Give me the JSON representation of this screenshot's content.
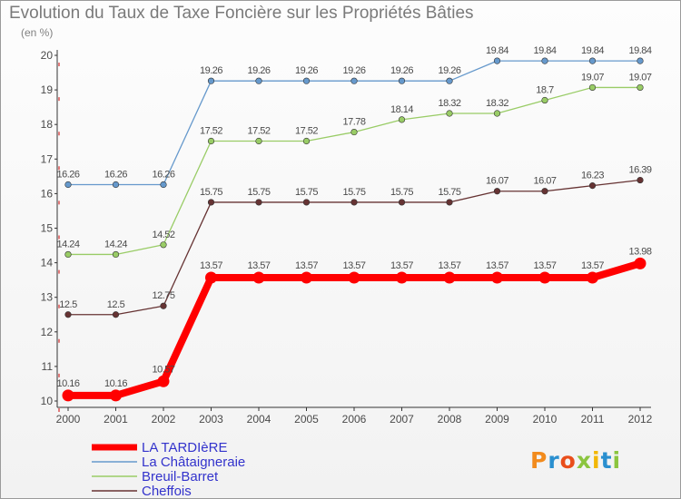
{
  "chart_data": {
    "type": "line",
    "title": "Evolution du Taux de Taxe Foncière sur les Propriétés Bâties",
    "ylabel": "(en %)",
    "ylim": [
      10,
      20
    ],
    "yticks": [
      10,
      11,
      12,
      13,
      14,
      15,
      16,
      17,
      18,
      19,
      20
    ],
    "x": [
      "2000",
      "2001",
      "2002",
      "2003",
      "2004",
      "2005",
      "2006",
      "2007",
      "2008",
      "2009",
      "2010",
      "2011",
      "2012"
    ],
    "grid": false,
    "legend_position": "bottom-left",
    "series": [
      {
        "name": "LA TARDIèRE",
        "color": "#ff0000",
        "values": [
          10.16,
          10.16,
          10.57,
          13.57,
          13.57,
          13.57,
          13.57,
          13.57,
          13.57,
          13.57,
          13.57,
          13.57,
          13.98
        ],
        "labels": [
          "10.16",
          "10.16",
          "10.57",
          "13.57",
          "13.57",
          "13.57",
          "13.57",
          "13.57",
          "13.57",
          "13.57",
          "13.57",
          "13.57",
          "13.98"
        ]
      },
      {
        "name": "La Châtaigneraie",
        "color": "#6699cc",
        "values": [
          16.26,
          16.26,
          16.26,
          19.26,
          19.26,
          19.26,
          19.26,
          19.26,
          19.26,
          19.84,
          19.84,
          19.84,
          19.84
        ],
        "labels": [
          "16.26",
          "16.26",
          "16.26",
          "19.26",
          "19.26",
          "19.26",
          "19.26",
          "19.26",
          "19.26",
          "19.84",
          "19.84",
          "19.84",
          "19.84"
        ]
      },
      {
        "name": "Breuil-Barret",
        "color": "#99cc66",
        "values": [
          14.24,
          14.24,
          14.52,
          17.52,
          17.52,
          17.52,
          17.78,
          18.14,
          18.32,
          18.32,
          18.7,
          19.07,
          19.07
        ],
        "labels": [
          "14.24",
          "14.24",
          "14.52",
          "17.52",
          "17.52",
          "17.52",
          "17.78",
          "18.14",
          "18.32",
          "18.32",
          "18.7",
          "19.07",
          "19.07"
        ]
      },
      {
        "name": "Cheffois",
        "color": "#663333",
        "values": [
          12.5,
          12.5,
          12.75,
          15.75,
          15.75,
          15.75,
          15.75,
          15.75,
          15.75,
          16.07,
          16.07,
          16.23,
          16.39
        ],
        "labels": [
          "12.5",
          "12.5",
          "12.75",
          "15.75",
          "15.75",
          "15.75",
          "15.75",
          "15.75",
          "15.75",
          "16.07",
          "16.07",
          "16.23",
          "16.39"
        ]
      }
    ]
  },
  "logo": {
    "letters": [
      "P",
      "r",
      "o",
      "x",
      "i",
      "t",
      "i"
    ],
    "colors": [
      "#f28b1d",
      "#2a8fcf",
      "#e94e1b",
      "#8bc53f",
      "#f2b705",
      "#2a8fcf",
      "#8bc53f"
    ]
  },
  "colors": {
    "axis": "#333333",
    "text": "#4a4a4a",
    "legend_text": "#3333cc",
    "title": "#7a7a7a"
  }
}
